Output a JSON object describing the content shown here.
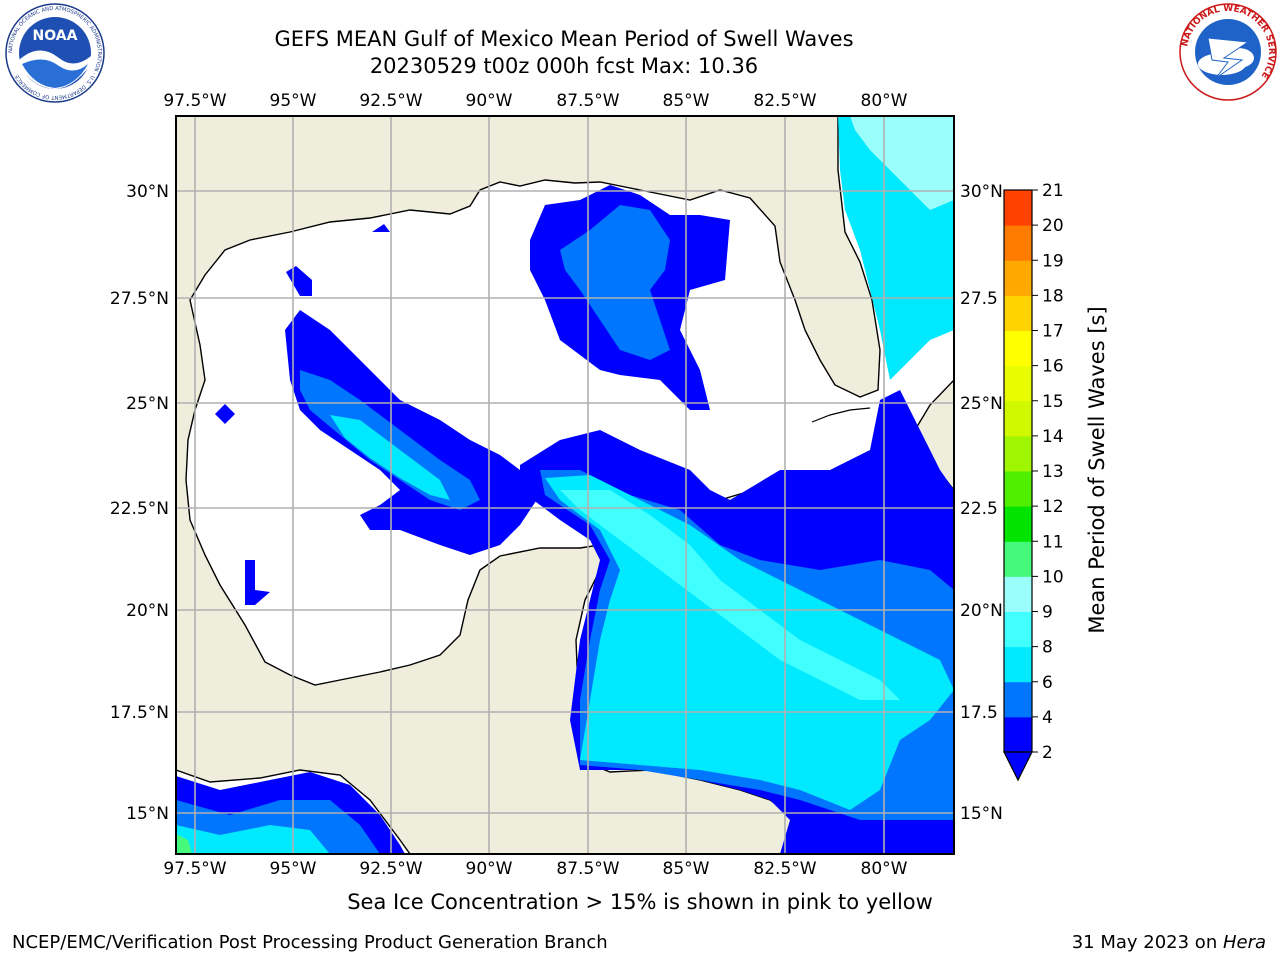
{
  "header": {
    "title_line1": "GEFS MEAN Gulf of Mexico Mean Period of Swell Waves",
    "title_line2": "20230529 t00z 000h fcst   Max: 10.36"
  },
  "logos": {
    "left_text": "NOAA",
    "left_ring": "NATIONAL OCEANIC AND ATMOSPHERIC ADMINISTRATION · U.S. DEPARTMENT OF COMMERCE",
    "right_ring": "NATIONAL WEATHER SERVICE"
  },
  "map": {
    "lon_labels": [
      "97.5°W",
      "95°W",
      "92.5°W",
      "90°W",
      "87.5°W",
      "85°W",
      "82.5°W",
      "80°W"
    ],
    "lat_labels_left": [
      "30°N",
      "27.5°N",
      "25°N",
      "22.5°N",
      "20°N",
      "17.5°N",
      "15°N"
    ],
    "lat_labels_right": [
      "30°N",
      "27.5",
      "25°N",
      "22.5",
      "20°N",
      "17.5",
      "15°N"
    ],
    "colors": {
      "land": "#efeddc",
      "water": "#ffffff",
      "grid": "#b0b0b0"
    }
  },
  "colorbar": {
    "title": "Mean Period of Swell Waves [s]",
    "ticks": [
      "2",
      "4",
      "6",
      "8",
      "9",
      "10",
      "11",
      "12",
      "13",
      "14",
      "15",
      "16",
      "17",
      "18",
      "19",
      "20",
      "21"
    ],
    "colors": [
      "#0000ff",
      "#0076ff",
      "#00e9ff",
      "#42ffff",
      "#9afffc",
      "#47f97a",
      "#00e400",
      "#50ef00",
      "#a0f500",
      "#d0f900",
      "#eafc00",
      "#ffff00",
      "#ffd300",
      "#ffa800",
      "#ff7c00",
      "#ff4200",
      "#ff0000"
    ]
  },
  "footer": {
    "note": "Sea Ice Concentration > 15% is shown in pink to yellow",
    "left": "NCEP/EMC/Verification Post Processing Product Generation Branch",
    "right_date": "31 May 2023 on ",
    "right_host": "Hera"
  }
}
